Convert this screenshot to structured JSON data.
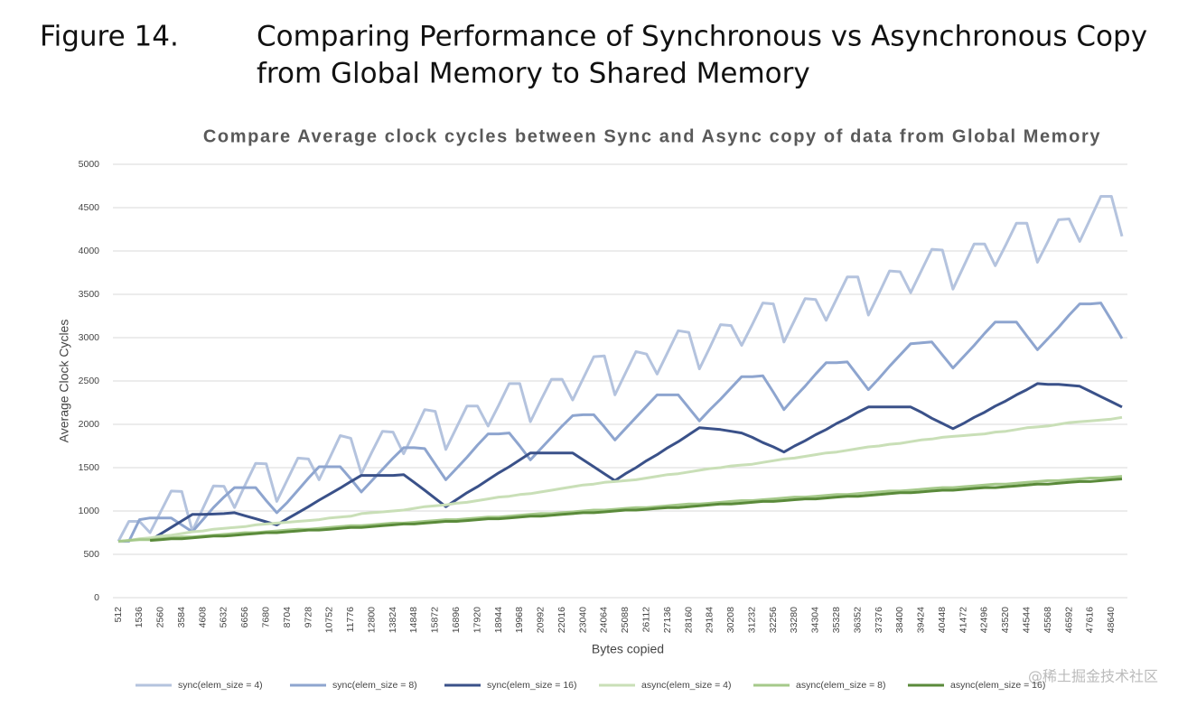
{
  "figure_label": "Figure 14.",
  "figure_title": [
    "Comparing Performance of Synchronous vs Asynchronous Copy",
    "from Global Memory to Shared Memory"
  ],
  "watermark": "@稀土掘金技术社区",
  "chart_data": {
    "type": "line",
    "title": "Compare Average clock cycles between Sync and Async copy of data from Global Memory",
    "x_label": "Bytes copied",
    "y_label": "Average Clock Cycles",
    "ylim": [
      0,
      5000
    ],
    "yticks": [
      0,
      500,
      1000,
      1500,
      2000,
      2500,
      3000,
      3500,
      4000,
      4500,
      5000
    ],
    "grid": true,
    "legend": "bottom",
    "categories": [
      512,
      null,
      1536,
      null,
      2560,
      null,
      3584,
      null,
      4608,
      null,
      5632,
      null,
      6656,
      null,
      7680,
      null,
      8704,
      null,
      9728,
      null,
      10752,
      null,
      11776,
      null,
      12800,
      null,
      13824,
      null,
      14848,
      null,
      15872,
      null,
      16896,
      null,
      17920,
      null,
      18944,
      null,
      19968,
      null,
      20992,
      null,
      22016,
      null,
      23040,
      null,
      24064,
      null,
      25088,
      null,
      26112,
      null,
      27136,
      null,
      28160,
      null,
      29184,
      null,
      30208,
      null,
      31232,
      null,
      32256,
      null,
      33280,
      null,
      34304,
      null,
      35328,
      null,
      36352,
      null,
      37376,
      null,
      38400,
      null,
      39424,
      null,
      40448,
      null,
      41472,
      null,
      42496,
      null,
      43520,
      null,
      44544,
      null,
      45568,
      null,
      46592,
      null,
      47616,
      null,
      48640,
      null
    ],
    "series": [
      {
        "name": "sync(elem_size = 4)",
        "color": "#b4c3de",
        "values": [
          650,
          880,
          880,
          750,
          990,
          1230,
          1225,
          770,
          1030,
          1290,
          1285,
          1040,
          1300,
          1550,
          1545,
          1110,
          1360,
          1610,
          1600,
          1360,
          1610,
          1870,
          1840,
          1430,
          1680,
          1920,
          1910,
          1660,
          1910,
          2170,
          2150,
          1710,
          1960,
          2210,
          2210,
          1980,
          2220,
          2470,
          2470,
          2030,
          2280,
          2520,
          2520,
          2280,
          2530,
          2780,
          2790,
          2340,
          2590,
          2840,
          2810,
          2580,
          2830,
          3080,
          3060,
          2640,
          2890,
          3150,
          3140,
          2910,
          3150,
          3400,
          3390,
          2950,
          3200,
          3450,
          3440,
          3200,
          3450,
          3700,
          3700,
          3260,
          3510,
          3770,
          3760,
          3520,
          3770,
          4020,
          4010,
          3560,
          3820,
          4080,
          4080,
          3830,
          4070,
          4320,
          4320,
          3870,
          4110,
          4360,
          4370,
          4110,
          4370,
          4630,
          4630,
          4170
        ]
      },
      {
        "name": "sync(elem_size = 8)",
        "color": "#8ea5cf",
        "values": [
          650,
          650,
          900,
          920,
          920,
          920,
          840,
          760,
          900,
          1040,
          1160,
          1270,
          1270,
          1270,
          1120,
          980,
          1100,
          1240,
          1380,
          1510,
          1510,
          1510,
          1370,
          1220,
          1350,
          1480,
          1610,
          1730,
          1730,
          1720,
          1540,
          1360,
          1490,
          1620,
          1760,
          1890,
          1890,
          1900,
          1750,
          1590,
          1720,
          1850,
          1980,
          2100,
          2110,
          2110,
          1970,
          1820,
          1950,
          2080,
          2210,
          2340,
          2340,
          2340,
          2190,
          2040,
          2170,
          2290,
          2420,
          2550,
          2550,
          2560,
          2370,
          2170,
          2310,
          2440,
          2580,
          2710,
          2710,
          2720,
          2560,
          2400,
          2530,
          2670,
          2800,
          2930,
          2940,
          2950,
          2800,
          2650,
          2780,
          2910,
          3050,
          3180,
          3180,
          3180,
          3020,
          2860,
          2990,
          3120,
          3260,
          3390,
          3390,
          3400,
          3200,
          2990
        ]
      },
      {
        "name": "sync(elem_size = 16)",
        "color": "#3a5189",
        "values": [
          null,
          null,
          null,
          660,
          735,
          810,
          885,
          960,
          960,
          965,
          970,
          980,
          945,
          910,
          875,
          840,
          910,
          980,
          1050,
          1125,
          1195,
          1265,
          1340,
          1410,
          1410,
          1410,
          1410,
          1420,
          1330,
          1240,
          1145,
          1050,
          1130,
          1210,
          1280,
          1360,
          1440,
          1510,
          1590,
          1670,
          1670,
          1670,
          1670,
          1670,
          1590,
          1510,
          1430,
          1350,
          1430,
          1500,
          1580,
          1650,
          1730,
          1800,
          1880,
          1960,
          1950,
          1940,
          1920,
          1900,
          1850,
          1790,
          1740,
          1680,
          1750,
          1810,
          1880,
          1940,
          2010,
          2070,
          2140,
          2200,
          2200,
          2200,
          2200,
          2200,
          2140,
          2070,
          2010,
          1950,
          2010,
          2080,
          2140,
          2210,
          2270,
          2340,
          2400,
          2470,
          2460,
          2460,
          2450,
          2440,
          2380,
          2320,
          2260,
          2200
        ]
      },
      {
        "name": "async(elem_size = 4)",
        "color": "#c9dfb7",
        "values": [
          650,
          660,
          680,
          690,
          710,
          720,
          740,
          760,
          770,
          790,
          800,
          810,
          820,
          840,
          850,
          860,
          870,
          880,
          890,
          900,
          920,
          930,
          940,
          970,
          980,
          990,
          1000,
          1010,
          1030,
          1050,
          1060,
          1070,
          1090,
          1100,
          1120,
          1140,
          1160,
          1170,
          1190,
          1200,
          1220,
          1240,
          1260,
          1280,
          1300,
          1310,
          1330,
          1340,
          1350,
          1360,
          1380,
          1400,
          1420,
          1430,
          1450,
          1470,
          1490,
          1500,
          1520,
          1530,
          1540,
          1560,
          1580,
          1600,
          1610,
          1630,
          1650,
          1670,
          1680,
          1700,
          1720,
          1740,
          1750,
          1770,
          1780,
          1800,
          1820,
          1830,
          1850,
          1860,
          1870,
          1880,
          1890,
          1910,
          1920,
          1940,
          1960,
          1970,
          1980,
          2000,
          2020,
          2030,
          2040,
          2050,
          2060,
          2080
        ]
      },
      {
        "name": "async(elem_size = 8)",
        "color": "#a5c98a",
        "values": [
          650,
          660,
          670,
          670,
          680,
          690,
          700,
          700,
          710,
          720,
          730,
          740,
          750,
          750,
          760,
          770,
          780,
          790,
          790,
          800,
          810,
          820,
          830,
          830,
          840,
          850,
          860,
          860,
          870,
          880,
          890,
          900,
          900,
          910,
          920,
          930,
          930,
          940,
          950,
          960,
          970,
          970,
          980,
          990,
          1000,
          1010,
          1010,
          1020,
          1030,
          1040,
          1040,
          1050,
          1060,
          1070,
          1080,
          1080,
          1090,
          1100,
          1110,
          1120,
          1120,
          1130,
          1140,
          1150,
          1160,
          1160,
          1170,
          1180,
          1190,
          1190,
          1200,
          1210,
          1220,
          1230,
          1230,
          1240,
          1250,
          1260,
          1270,
          1270,
          1280,
          1290,
          1300,
          1310,
          1310,
          1320,
          1330,
          1340,
          1350,
          1350,
          1360,
          1370,
          1380,
          1380,
          1390,
          1400
        ]
      },
      {
        "name": "async(elem_size = 16)",
        "color": "#5a8a3a",
        "values": [
          null,
          null,
          null,
          660,
          670,
          680,
          680,
          690,
          700,
          710,
          710,
          720,
          730,
          740,
          750,
          750,
          760,
          770,
          780,
          780,
          790,
          800,
          810,
          810,
          820,
          830,
          840,
          850,
          850,
          860,
          870,
          880,
          880,
          890,
          900,
          910,
          910,
          920,
          930,
          940,
          940,
          950,
          960,
          970,
          980,
          980,
          990,
          1000,
          1010,
          1010,
          1020,
          1030,
          1040,
          1040,
          1050,
          1060,
          1070,
          1080,
          1080,
          1090,
          1100,
          1110,
          1110,
          1120,
          1130,
          1140,
          1140,
          1150,
          1160,
          1170,
          1170,
          1180,
          1190,
          1200,
          1210,
          1210,
          1220,
          1230,
          1240,
          1240,
          1250,
          1260,
          1270,
          1270,
          1280,
          1290,
          1300,
          1310,
          1310,
          1320,
          1330,
          1340,
          1340,
          1350,
          1360,
          1370
        ]
      }
    ]
  }
}
